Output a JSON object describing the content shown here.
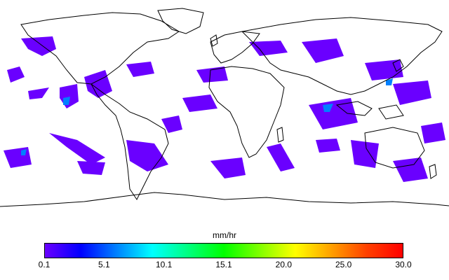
{
  "map": {
    "projection": "equirectangular",
    "coastline_color": "#000000",
    "background": "#ffffff",
    "layer": "precipitation rate"
  },
  "colorbar": {
    "unit": "mm/hr",
    "ticks": [
      "0.1",
      "5.1",
      "10.1",
      "15.1",
      "20.0",
      "25.0",
      "30.0"
    ],
    "min": 0.1,
    "max": 30.0,
    "colors": [
      "#6a00ff",
      "#0000ff",
      "#0080ff",
      "#00ffff",
      "#00ff80",
      "#00ff00",
      "#80ff00",
      "#ffff00",
      "#ffa000",
      "#ff4000",
      "#ff0000"
    ]
  }
}
